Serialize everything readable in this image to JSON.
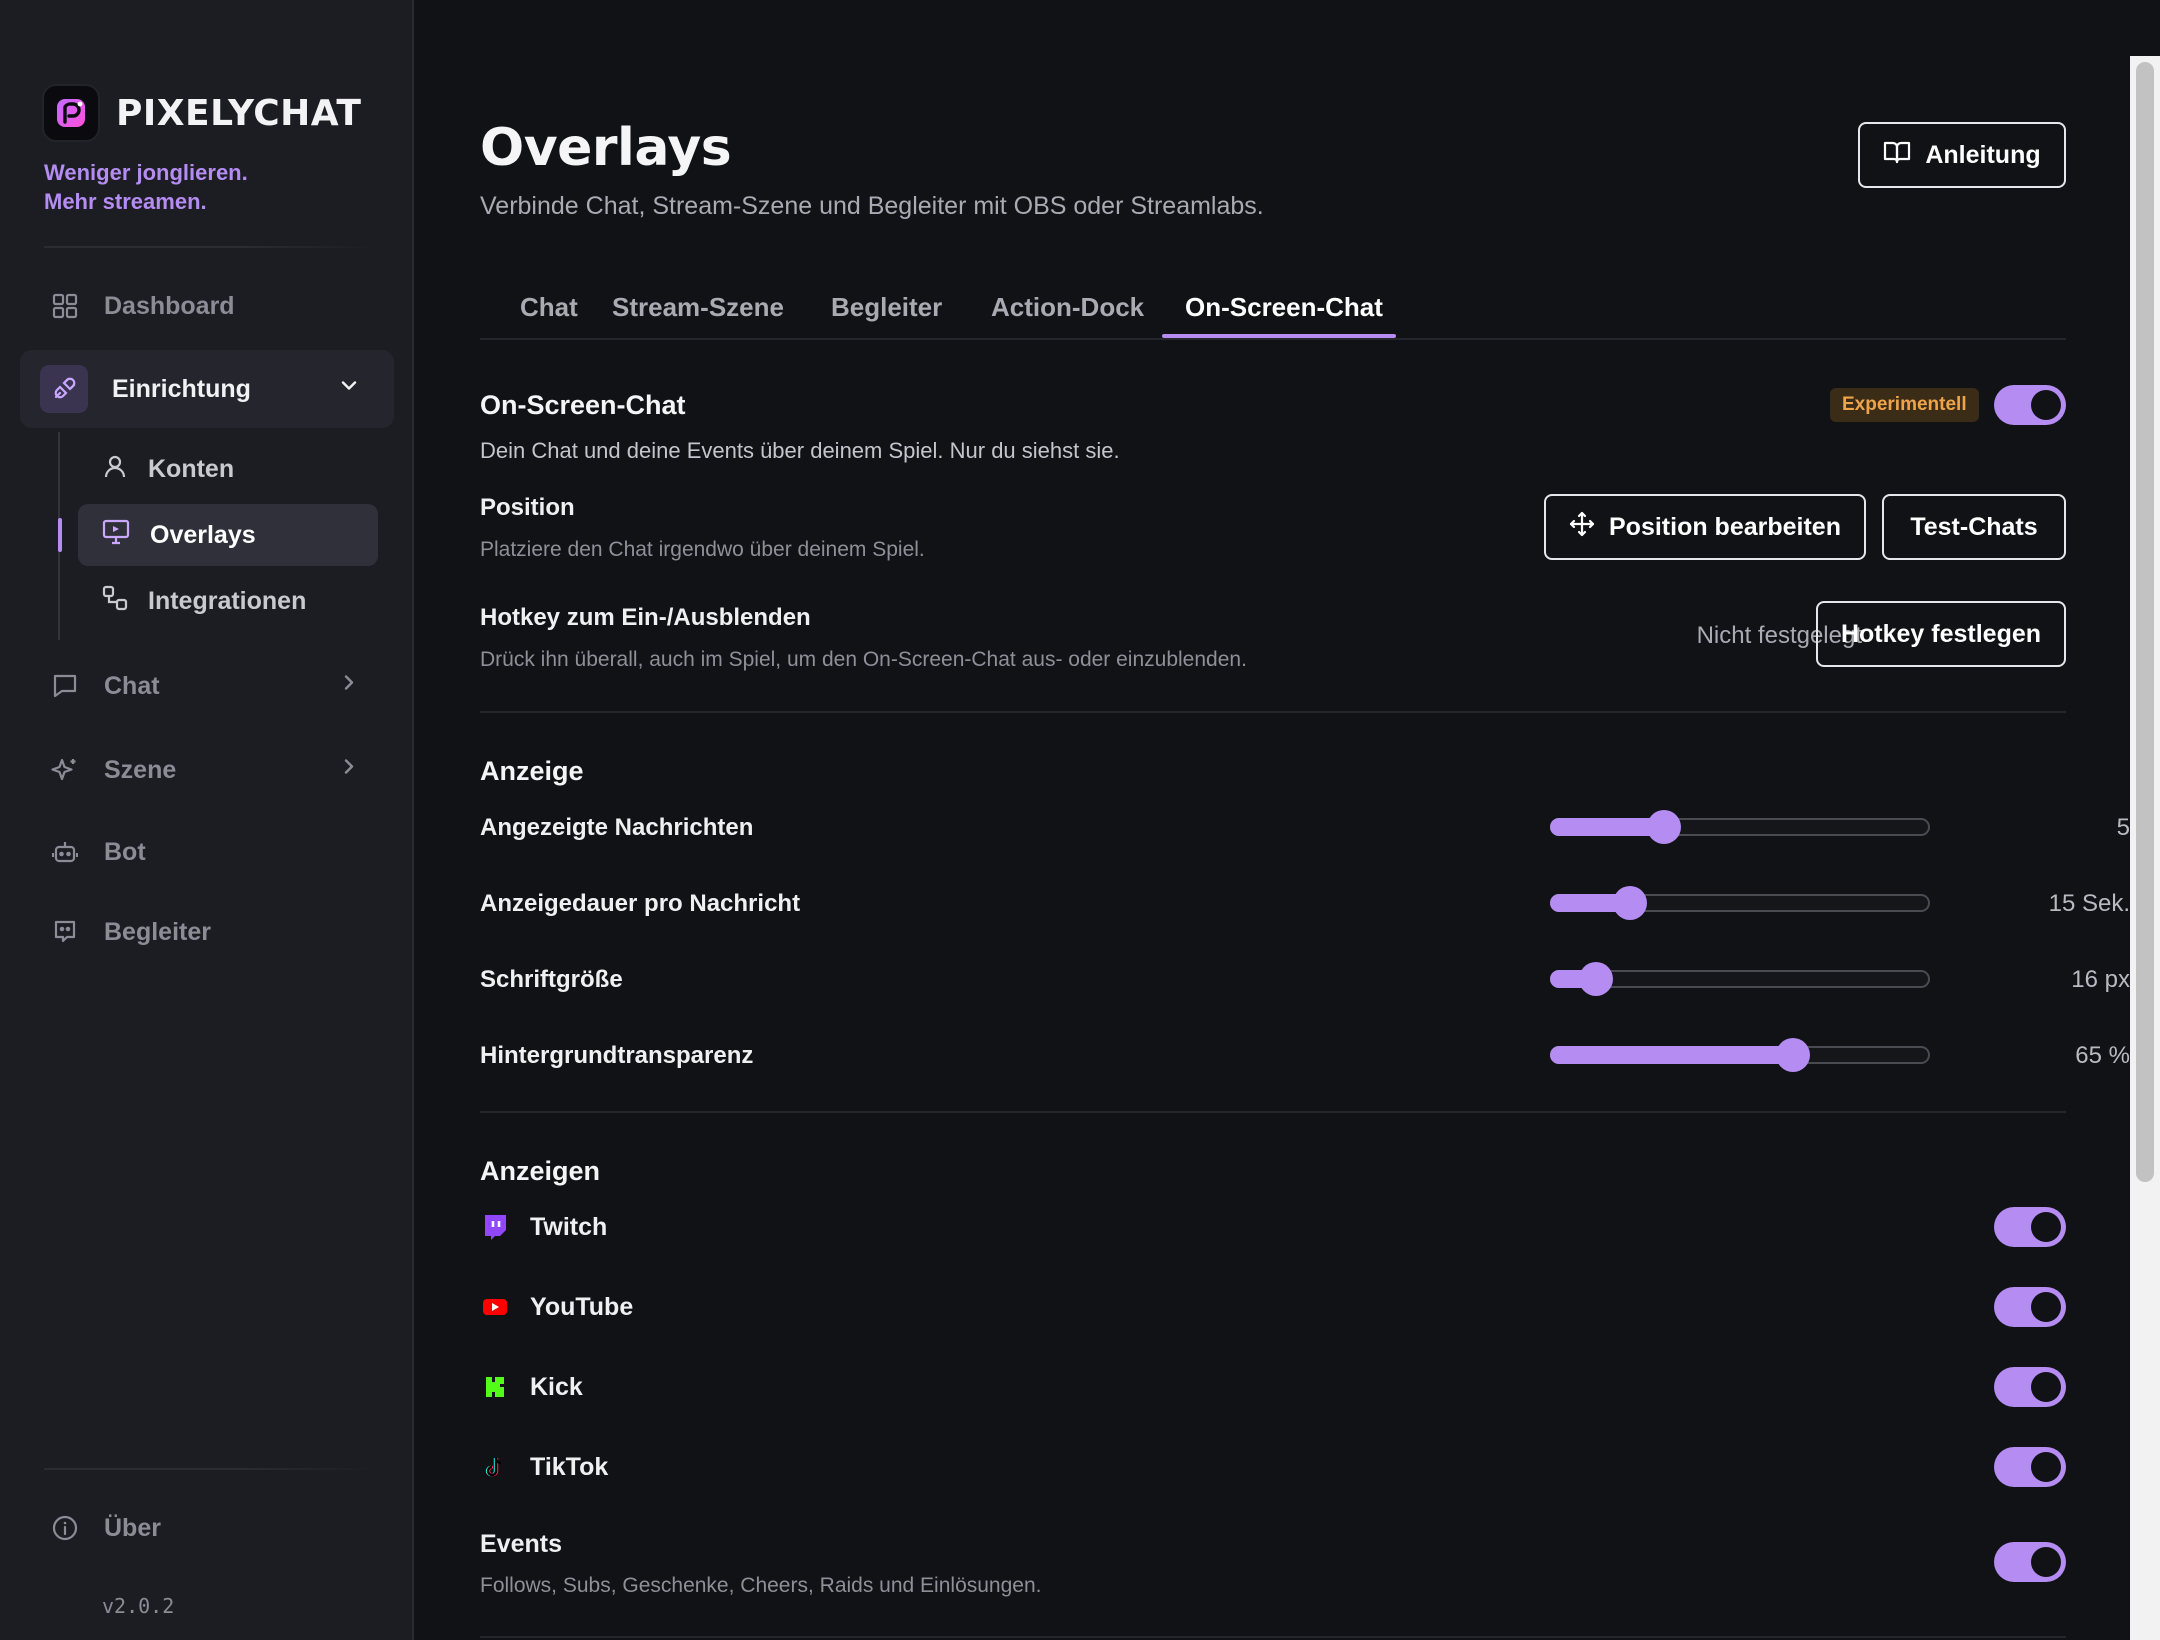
{
  "brand": {
    "name": "PIXELYCHAT",
    "tagline_line1": "Weniger jonglieren.",
    "tagline_line2": "Mehr streamen."
  },
  "sidebar": {
    "items": [
      {
        "label": "Dashboard",
        "icon": "grid-icon"
      },
      {
        "label": "Einrichtung",
        "icon": "plug-icon",
        "expanded": true
      },
      {
        "label": "Chat",
        "icon": "chat-bubble-icon"
      },
      {
        "label": "Szene",
        "icon": "sparkle-icon"
      },
      {
        "label": "Bot",
        "icon": "robot-icon"
      },
      {
        "label": "Begleiter",
        "icon": "companion-icon"
      }
    ],
    "sub_items": [
      {
        "label": "Konten",
        "icon": "user-icon"
      },
      {
        "label": "Overlays",
        "icon": "monitor-icon",
        "active": true
      },
      {
        "label": "Integrationen",
        "icon": "integrations-icon"
      }
    ],
    "about": "Über",
    "version": "v2.0.2"
  },
  "header": {
    "title": "Overlays",
    "subtitle": "Verbinde Chat, Stream-Szene und Begleiter mit OBS oder Streamlabs.",
    "guide_button": "Anleitung"
  },
  "tabs": [
    "Chat",
    "Stream-Szene",
    "Begleiter",
    "Action-Dock",
    "On-Screen-Chat"
  ],
  "active_tab": "On-Screen-Chat",
  "osc": {
    "title": "On-Screen-Chat",
    "badge": "Experimentell",
    "enabled": true,
    "description": "Dein Chat und deine Events über deinem Spiel. Nur du siehst sie.",
    "position_label": "Position",
    "position_desc": "Platziere den Chat irgendwo über deinem Spiel.",
    "position_button": "Position bearbeiten",
    "test_button": "Test-Chats",
    "hotkey_label": "Hotkey zum Ein-/Ausblenden",
    "hotkey_desc": "Drück ihn überall, auch im Spiel, um den On-Screen-Chat aus- oder einzublenden.",
    "hotkey_value": "Nicht festgelegt",
    "hotkey_button": "Hotkey festlegen"
  },
  "display": {
    "title": "Anzeige",
    "sliders": [
      {
        "label": "Angezeigte Nachrichten",
        "value_text": "5",
        "fraction": 0.3
      },
      {
        "label": "Anzeigedauer pro Nachricht",
        "value_text": "15 Sek.",
        "fraction": 0.21
      },
      {
        "label": "Schriftgröße",
        "value_text": "16 px",
        "fraction": 0.12
      },
      {
        "label": "Hintergrundtransparenz",
        "value_text": "65 %",
        "fraction": 0.64
      }
    ]
  },
  "show": {
    "title": "Anzeigen",
    "platforms": [
      {
        "label": "Twitch",
        "icon": "twitch-icon",
        "color": "#9146ff",
        "enabled": true
      },
      {
        "label": "YouTube",
        "icon": "youtube-icon",
        "color": "#ff0000",
        "enabled": true
      },
      {
        "label": "Kick",
        "icon": "kick-icon",
        "color": "#53fc18",
        "enabled": true
      },
      {
        "label": "TikTok",
        "icon": "tiktok-icon",
        "color": "#000000",
        "enabled": true
      }
    ],
    "events_label": "Events",
    "events_desc": "Follows, Subs, Geschenke, Cheers, Raids und Einlösungen.",
    "events_enabled": true
  },
  "colors": {
    "accent": "#b48cf2",
    "badge_text": "#f0a44a",
    "badge_bg": "#3a2c17",
    "background": "#111215",
    "sidebar": "#1c1d22"
  }
}
